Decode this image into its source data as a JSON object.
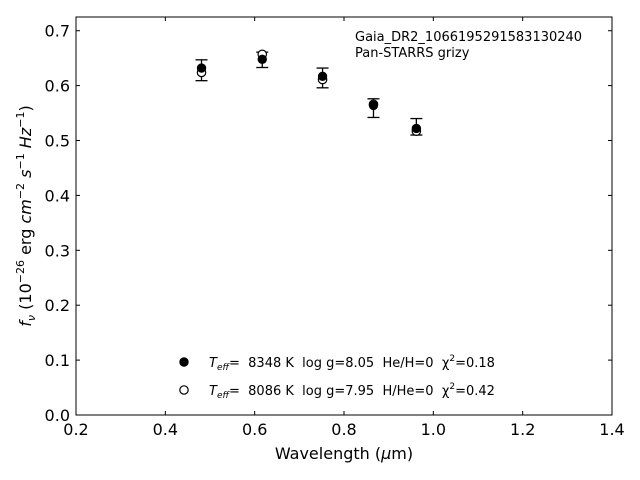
{
  "chart_data": {
    "type": "scatter",
    "annotation": {
      "line1": "Gaia_DR2_1066195291583130240",
      "line2": "Pan-STARRS grizy"
    },
    "xlabel": "Wavelength (µm)",
    "ylabel": "f_ν (10⁻²⁶ erg cm⁻² s⁻¹ Hz⁻¹)",
    "xlim": [
      0.2,
      1.4
    ],
    "ylim": [
      0.0,
      0.725
    ],
    "xticks": [
      0.2,
      0.4,
      0.6,
      0.8,
      1.0,
      1.2,
      1.4
    ],
    "xtick_labels": [
      "0.2",
      "0.4",
      "0.6",
      "0.8",
      "1.0",
      "1.2",
      "1.4"
    ],
    "yticks": [
      0.0,
      0.1,
      0.2,
      0.3,
      0.4,
      0.5,
      0.6,
      0.7
    ],
    "ytick_labels": [
      "0.0",
      "0.1",
      "0.2",
      "0.3",
      "0.4",
      "0.5",
      "0.6",
      "0.7"
    ],
    "observed": {
      "x": [
        0.481,
        0.617,
        0.752,
        0.866,
        0.962
      ],
      "y": [
        0.628,
        0.647,
        0.614,
        0.559,
        0.525
      ],
      "yerr": [
        0.019,
        0.014,
        0.018,
        0.017,
        0.015
      ]
    },
    "series": [
      {
        "name": "T_eff= 8348 K log g=8.05 He/H=0 χ²=0.18",
        "marker": "filled-circle",
        "x": [
          0.481,
          0.617,
          0.752,
          0.866,
          0.962
        ],
        "y": [
          0.632,
          0.648,
          0.617,
          0.564,
          0.522
        ]
      },
      {
        "name": "T_eff= 8086 K log g=7.95 H/He=0 χ²=0.42",
        "marker": "open-circle",
        "x": [
          0.481,
          0.617,
          0.752,
          0.866,
          0.962
        ],
        "y": [
          0.624,
          0.657,
          0.611,
          0.566,
          0.517
        ]
      }
    ],
    "legend": {
      "placement": "lower-center",
      "entries": [
        {
          "teff_label": "T",
          "teff_sub": "eff",
          "rest": "=  8348 K  log g=8.05  He/H=0  χ",
          "chi_sup": "2",
          "chi_val": "=0.18"
        },
        {
          "teff_label": "T",
          "teff_sub": "eff",
          "rest": "=  8086 K  log g=7.95  H/He=0  χ",
          "chi_sup": "2",
          "chi_val": "=0.42"
        }
      ]
    },
    "grid": false
  }
}
